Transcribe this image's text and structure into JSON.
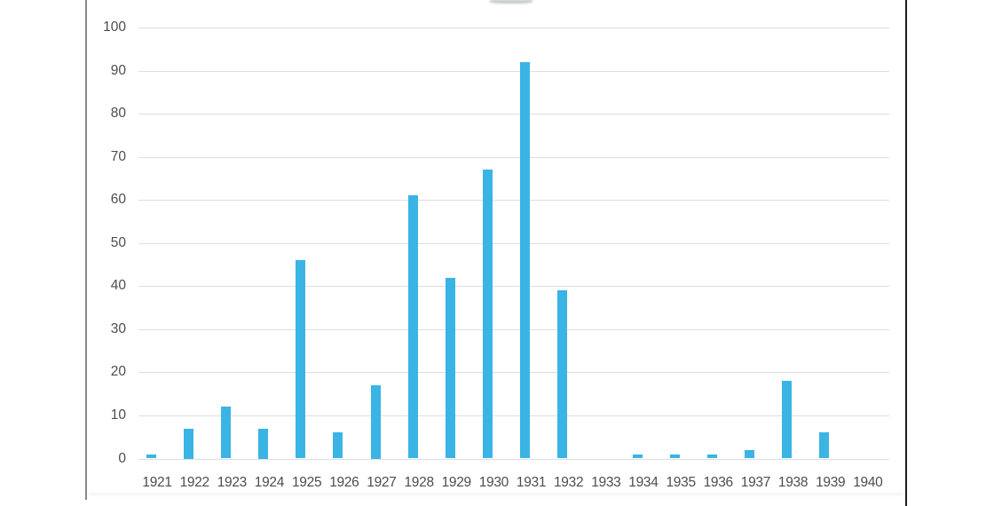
{
  "page": {
    "background_color": "#ffffff"
  },
  "frame": {
    "left_border_color": "#85898c",
    "right_border_color": "#1a1c1e",
    "note_title_cut_off": true
  },
  "chart_data": {
    "type": "bar",
    "title": "",
    "xlabel": "",
    "ylabel": "",
    "categories": [
      "1921",
      "1922",
      "1923",
      "1924",
      "1925",
      "1926",
      "1927",
      "1928",
      "1929",
      "1930",
      "1931",
      "1932",
      "1933",
      "1934",
      "1935",
      "1936",
      "1937",
      "1938",
      "1939",
      "1940"
    ],
    "values": [
      1,
      7,
      12,
      7,
      46,
      6,
      17,
      61,
      42,
      67,
      92,
      39,
      0,
      1,
      1,
      1,
      2,
      18,
      6,
      0
    ],
    "ylim": [
      0,
      100
    ],
    "yticks": [
      0,
      10,
      20,
      30,
      40,
      50,
      60,
      70,
      80,
      90,
      100
    ],
    "grid": true,
    "legend": false,
    "bar_color": "#3ab4e5",
    "gridline_color": "#dadfe1",
    "tick_label_color": "#4d4d4d"
  }
}
